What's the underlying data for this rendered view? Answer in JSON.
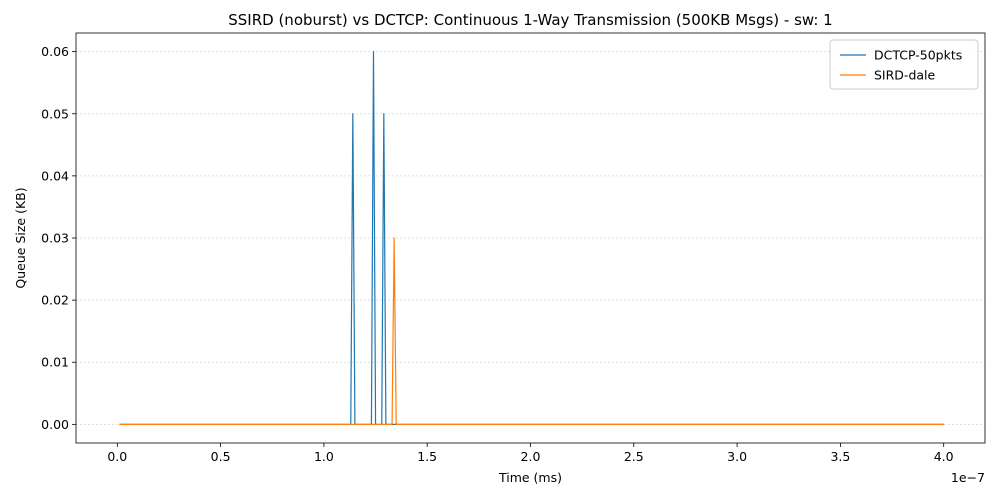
{
  "chart_data": {
    "type": "line",
    "title": "SSIRD (noburst) vs DCTCP: Continuous 1-Way Transmission (500KB Msgs) - sw: 1",
    "xlabel": "Time (ms)",
    "ylabel": "Queue Size (KB)",
    "x_scale_label": "1e−7",
    "xlim": [
      -0.2,
      4.2
    ],
    "ylim": [
      -0.003,
      0.063
    ],
    "x_ticks": [
      0.0,
      0.5,
      1.0,
      1.5,
      2.0,
      2.5,
      3.0,
      3.5,
      4.0
    ],
    "x_tick_labels": [
      "0.0",
      "0.5",
      "1.0",
      "1.5",
      "2.0",
      "2.5",
      "3.0",
      "3.5",
      "4.0"
    ],
    "y_ticks": [
      0.0,
      0.01,
      0.02,
      0.03,
      0.04,
      0.05,
      0.06
    ],
    "y_tick_labels": [
      "0.00",
      "0.01",
      "0.02",
      "0.03",
      "0.04",
      "0.05",
      "0.06"
    ],
    "grid": "horizontal",
    "legend_position": "top-right",
    "series": [
      {
        "name": "DCTCP-50pkts",
        "color": "#1f77b4",
        "x": [
          0.01,
          1.13,
          1.14,
          1.15,
          1.23,
          1.24,
          1.25,
          1.28,
          1.29,
          1.3,
          4.0
        ],
        "y": [
          0.0,
          0.0,
          0.05,
          0.0,
          0.0,
          0.06,
          0.0,
          0.0,
          0.05,
          0.0,
          0.0
        ]
      },
      {
        "name": "SIRD-dale",
        "color": "#ff7f0e",
        "x": [
          0.01,
          1.33,
          1.34,
          1.35,
          4.0
        ],
        "y": [
          0.0,
          0.0,
          0.03,
          0.0,
          0.0
        ]
      }
    ]
  }
}
